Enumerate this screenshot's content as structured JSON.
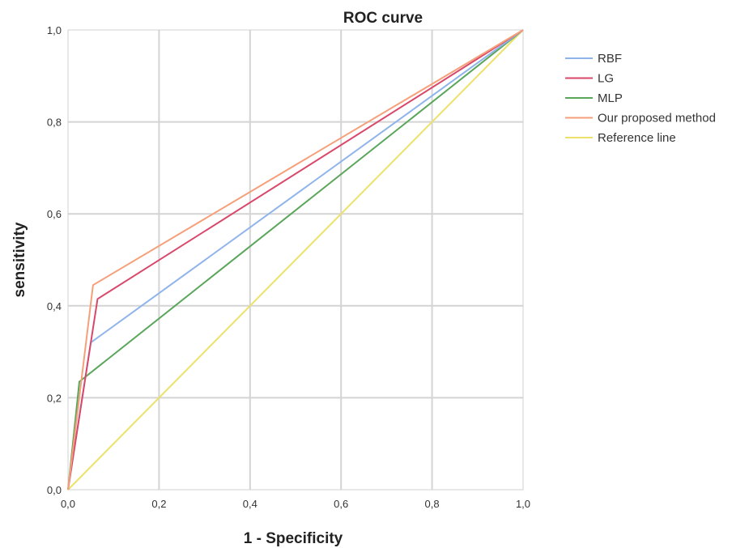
{
  "chart_data": {
    "type": "line",
    "title": "ROC curve",
    "xlabel": "1 - Specificity",
    "ylabel": "sensitivity",
    "xlim": [
      0,
      1
    ],
    "ylim": [
      0,
      1
    ],
    "grid": true,
    "legend_position": "right",
    "x_ticks": [
      "0,0",
      "0,2",
      "0,4",
      "0,6",
      "0,8",
      "1,0"
    ],
    "y_ticks": [
      "0,0",
      "0,2",
      "0,4",
      "0,6",
      "0,8",
      "1,0"
    ],
    "series": [
      {
        "name": "RBF",
        "color": "#8fb4ec",
        "x": [
          0,
          0.05,
          1.0
        ],
        "y": [
          0,
          0.32,
          1.0
        ]
      },
      {
        "name": "LG",
        "color": "#d9486a",
        "x": [
          0,
          0.065,
          1.0
        ],
        "y": [
          0,
          0.415,
          1.0
        ]
      },
      {
        "name": "MLP",
        "color": "#5aa65a",
        "x": [
          0,
          0.025,
          1.0
        ],
        "y": [
          0,
          0.235,
          1.0
        ]
      },
      {
        "name": "Our proposed method",
        "color": "#f5a07a",
        "x": [
          0,
          0.055,
          1.0
        ],
        "y": [
          0,
          0.445,
          1.0
        ]
      },
      {
        "name": "Reference line",
        "color": "#ece26a",
        "x": [
          0,
          1.0
        ],
        "y": [
          0,
          1.0
        ]
      }
    ]
  }
}
